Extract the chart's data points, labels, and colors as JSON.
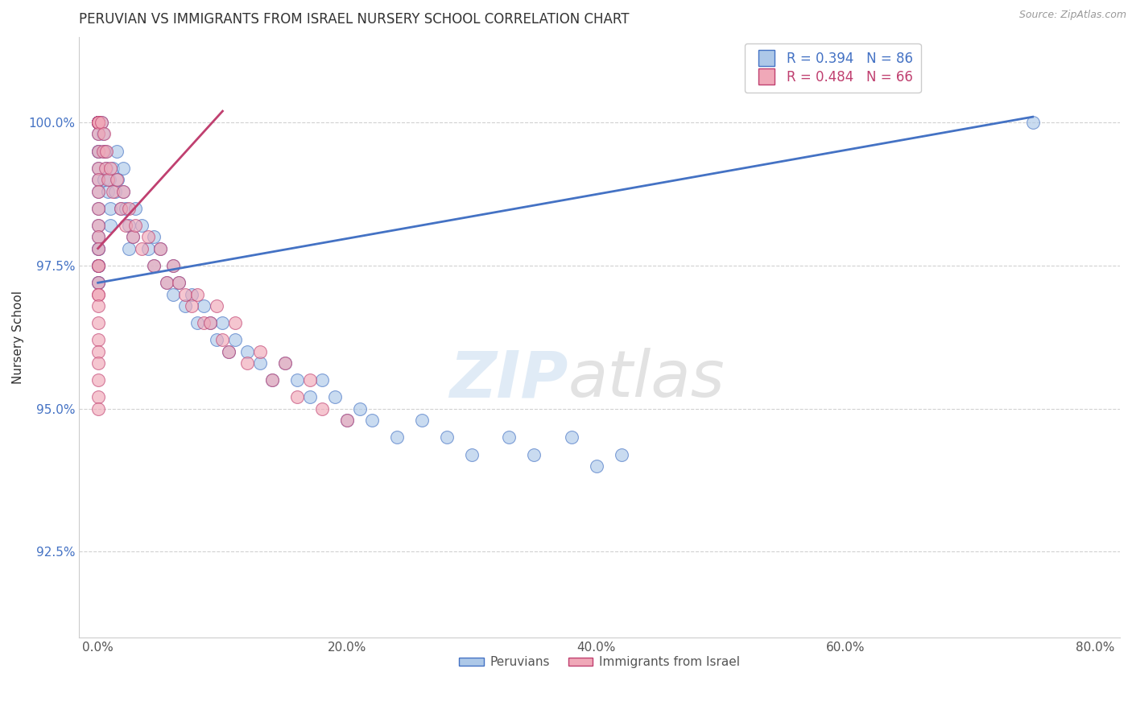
{
  "title": "PERUVIAN VS IMMIGRANTS FROM ISRAEL NURSERY SCHOOL CORRELATION CHART",
  "source": "Source: ZipAtlas.com",
  "ylabel": "Nursery School",
  "x_ticks": [
    0.0,
    20.0,
    40.0,
    60.0,
    80.0
  ],
  "x_tick_labels": [
    "0.0%",
    "20.0%",
    "40.0%",
    "60.0%",
    "80.0%"
  ],
  "y_ticks": [
    92.5,
    95.0,
    97.5,
    100.0
  ],
  "y_tick_labels": [
    "92.5%",
    "95.0%",
    "97.5%",
    "100.0%"
  ],
  "xlim": [
    -1.5,
    82
  ],
  "ylim": [
    91.0,
    101.5
  ],
  "blue_R": 0.394,
  "blue_N": 86,
  "pink_R": 0.484,
  "pink_N": 66,
  "blue_color": "#adc8e8",
  "pink_color": "#f0a8b8",
  "blue_line_color": "#4472c4",
  "pink_line_color": "#c04070",
  "blue_trendline_x": [
    0.0,
    75.0
  ],
  "blue_trendline_y": [
    97.2,
    100.1
  ],
  "pink_trendline_x": [
    0.0,
    10.0
  ],
  "pink_trendline_y": [
    97.8,
    100.2
  ],
  "legend_label_blue": "Peruvians",
  "legend_label_pink": "Immigrants from Israel",
  "blue_scatter_x": [
    0.0,
    0.0,
    0.0,
    0.0,
    0.0,
    0.0,
    0.0,
    0.0,
    0.0,
    0.0,
    0.0,
    0.0,
    0.0,
    0.0,
    0.0,
    0.0,
    0.0,
    0.0,
    0.0,
    0.0,
    0.0,
    0.0,
    0.0,
    0.0,
    0.0,
    0.3,
    0.4,
    0.5,
    0.5,
    0.6,
    0.7,
    0.8,
    0.9,
    1.0,
    1.0,
    1.2,
    1.4,
    1.5,
    1.6,
    1.8,
    2.0,
    2.0,
    2.2,
    2.5,
    2.5,
    2.8,
    3.0,
    3.5,
    4.0,
    4.5,
    4.5,
    5.0,
    5.5,
    6.0,
    6.0,
    6.5,
    7.0,
    7.5,
    8.0,
    8.5,
    9.0,
    9.5,
    10.0,
    10.5,
    11.0,
    12.0,
    13.0,
    14.0,
    15.0,
    16.0,
    17.0,
    18.0,
    19.0,
    20.0,
    21.0,
    22.0,
    24.0,
    26.0,
    28.0,
    30.0,
    33.0,
    35.0,
    38.0,
    40.0,
    42.0,
    75.0
  ],
  "blue_scatter_y": [
    100.0,
    100.0,
    100.0,
    100.0,
    100.0,
    100.0,
    100.0,
    100.0,
    100.0,
    99.8,
    99.5,
    99.5,
    99.2,
    99.0,
    98.8,
    98.5,
    98.2,
    98.0,
    97.8,
    97.8,
    97.5,
    97.5,
    97.5,
    97.2,
    97.2,
    100.0,
    99.8,
    99.5,
    99.0,
    99.5,
    99.2,
    98.8,
    99.0,
    98.5,
    98.2,
    99.2,
    98.8,
    99.5,
    99.0,
    98.5,
    99.2,
    98.8,
    98.5,
    98.2,
    97.8,
    98.0,
    98.5,
    98.2,
    97.8,
    98.0,
    97.5,
    97.8,
    97.2,
    97.5,
    97.0,
    97.2,
    96.8,
    97.0,
    96.5,
    96.8,
    96.5,
    96.2,
    96.5,
    96.0,
    96.2,
    96.0,
    95.8,
    95.5,
    95.8,
    95.5,
    95.2,
    95.5,
    95.2,
    94.8,
    95.0,
    94.8,
    94.5,
    94.8,
    94.5,
    94.2,
    94.5,
    94.2,
    94.5,
    94.0,
    94.2,
    100.0
  ],
  "pink_scatter_x": [
    0.0,
    0.0,
    0.0,
    0.0,
    0.0,
    0.0,
    0.0,
    0.0,
    0.0,
    0.0,
    0.0,
    0.0,
    0.0,
    0.0,
    0.0,
    0.0,
    0.0,
    0.0,
    0.0,
    0.0,
    0.0,
    0.0,
    0.0,
    0.0,
    0.0,
    0.0,
    0.0,
    0.3,
    0.4,
    0.5,
    0.6,
    0.7,
    0.8,
    1.0,
    1.2,
    1.5,
    1.8,
    2.0,
    2.2,
    2.5,
    2.8,
    3.0,
    3.5,
    4.0,
    4.5,
    5.0,
    5.5,
    6.0,
    6.5,
    7.0,
    7.5,
    8.0,
    8.5,
    9.0,
    9.5,
    10.0,
    10.5,
    11.0,
    12.0,
    13.0,
    14.0,
    15.0,
    16.0,
    17.0,
    18.0,
    20.0
  ],
  "pink_scatter_y": [
    100.0,
    100.0,
    100.0,
    100.0,
    100.0,
    99.8,
    99.5,
    99.2,
    99.0,
    98.8,
    98.5,
    98.2,
    98.0,
    97.8,
    97.5,
    97.5,
    97.2,
    97.0,
    97.0,
    96.8,
    96.5,
    96.2,
    96.0,
    95.8,
    95.5,
    95.2,
    95.0,
    100.0,
    99.5,
    99.8,
    99.2,
    99.5,
    99.0,
    99.2,
    98.8,
    99.0,
    98.5,
    98.8,
    98.2,
    98.5,
    98.0,
    98.2,
    97.8,
    98.0,
    97.5,
    97.8,
    97.2,
    97.5,
    97.2,
    97.0,
    96.8,
    97.0,
    96.5,
    96.5,
    96.8,
    96.2,
    96.0,
    96.5,
    95.8,
    96.0,
    95.5,
    95.8,
    95.2,
    95.5,
    95.0,
    94.8
  ]
}
